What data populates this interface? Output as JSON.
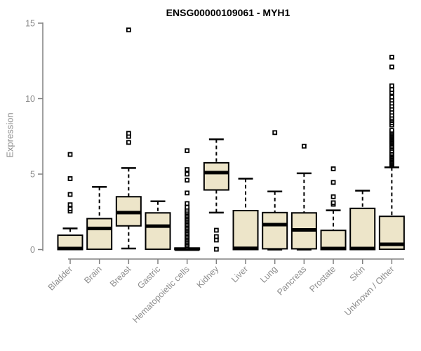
{
  "chart_data": {
    "type": "boxplot",
    "title": "ENSG00000109061 - MYH1",
    "ylabel": "Expression",
    "xlabel": "",
    "ylim": [
      0,
      15
    ],
    "yticks": [
      0,
      5,
      10,
      15
    ],
    "grid": false,
    "legend": "none",
    "colors": {
      "box_fill": "#EDE5C9",
      "box_stroke": "#000000",
      "median": "#000000",
      "whisker": "#000000",
      "outlier_stroke": "#000000",
      "axis": "#808080",
      "tick_label": "#8C8C8C",
      "title": "#000000"
    },
    "categories": [
      {
        "label": "Bladder",
        "whisker_low": 0,
        "q1": 0,
        "median": 0.07,
        "q3": 0.95,
        "whisker_high": 1.4,
        "outliers": [
          2.55,
          2.7,
          2.97,
          3.65,
          4.7,
          6.3
        ]
      },
      {
        "label": "Brain",
        "whisker_low": 0,
        "q1": 0.02,
        "median": 1.4,
        "q3": 2.05,
        "whisker_high": 4.15,
        "outliers": []
      },
      {
        "label": "Breast",
        "whisker_low": 0.07,
        "q1": 1.57,
        "median": 2.45,
        "q3": 3.5,
        "whisker_high": 5.4,
        "outliers": [
          7.1,
          7.5,
          7.7,
          14.55
        ]
      },
      {
        "label": "Gastric",
        "whisker_low": 0,
        "q1": 0.02,
        "median": 1.55,
        "q3": 2.43,
        "whisker_high": 3.2,
        "outliers": []
      },
      {
        "label": "Hematopoietic cells",
        "whisker_low": 0,
        "q1": 0,
        "median": 0.03,
        "q3": 0.1,
        "whisker_high": 0.12,
        "outliers": [
          0.16,
          0.25,
          0.35,
          0.45,
          0.55,
          0.65,
          0.75,
          0.85,
          0.95,
          1.05,
          1.15,
          1.25,
          1.35,
          1.45,
          1.55,
          1.65,
          1.75,
          1.85,
          1.95,
          2.05,
          2.15,
          2.25,
          2.35,
          2.45,
          2.55,
          2.67,
          2.8,
          3.05,
          3.75,
          4.6,
          5.0,
          5.3,
          6.55
        ]
      },
      {
        "label": "Kidney",
        "whisker_low": 2.45,
        "q1": 3.95,
        "median": 5.1,
        "q3": 5.75,
        "whisker_high": 7.3,
        "outliers": [
          0.02,
          0.63,
          0.86,
          1.28
        ]
      },
      {
        "label": "Liver",
        "whisker_low": 0,
        "q1": 0,
        "median": 0.08,
        "q3": 2.58,
        "whisker_high": 4.7,
        "outliers": []
      },
      {
        "label": "Lung",
        "whisker_low": 0,
        "q1": 0.05,
        "median": 1.65,
        "q3": 2.45,
        "whisker_high": 3.85,
        "outliers": [
          7.75
        ]
      },
      {
        "label": "Pancreas",
        "whisker_low": 0,
        "q1": 0.05,
        "median": 1.3,
        "q3": 2.43,
        "whisker_high": 5.05,
        "outliers": [
          6.85
        ]
      },
      {
        "label": "Prostate",
        "whisker_low": 0,
        "q1": 0,
        "median": 0.07,
        "q3": 1.27,
        "whisker_high": 2.6,
        "outliers": [
          3.0,
          3.1,
          3.5,
          4.45,
          5.35
        ]
      },
      {
        "label": "Skin",
        "whisker_low": 0,
        "q1": 0,
        "median": 0.07,
        "q3": 2.73,
        "whisker_high": 3.9,
        "outliers": []
      },
      {
        "label": "Unknown / Other",
        "whisker_low": 0,
        "q1": 0.02,
        "median": 0.35,
        "q3": 2.2,
        "whisker_high": 5.45,
        "outliers": [
          5.55,
          5.62,
          5.7,
          5.78,
          5.86,
          5.94,
          6.02,
          6.1,
          6.18,
          6.26,
          6.34,
          6.45,
          6.55,
          6.7,
          6.8,
          6.9,
          7.0,
          7.08,
          7.16,
          7.24,
          7.32,
          7.4,
          7.48,
          7.56,
          7.64,
          7.72,
          7.8,
          7.9,
          8.25,
          8.4,
          8.55,
          8.65,
          8.75,
          8.9,
          9.1,
          9.3,
          9.5,
          9.7,
          9.9,
          10.1,
          10.4,
          10.6,
          10.85,
          12.1,
          12.75
        ]
      }
    ]
  }
}
